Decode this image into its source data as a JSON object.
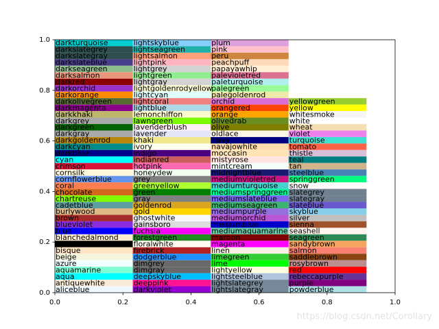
{
  "chart_data": {
    "type": "swatch",
    "columns": [
      {
        "names": [
          "darkturquoise",
          "darkslategrey",
          "darkslategray",
          "darkslateblue",
          "darkseagreen",
          "darksalmon",
          "darkred",
          "darkorchid",
          "darkorange",
          "darkolivegreen",
          "darkmagenta",
          "darkkhaki",
          "darkgrey",
          "darkgreen",
          "darkgray",
          "darkgoldenrod",
          "darkcyan",
          "darkblue",
          "cyan",
          "crimson",
          "cornsilk",
          "cornflowerblue",
          "coral",
          "chocolate",
          "chartreuse",
          "cadetblue",
          "burlywood",
          "brown",
          "blueviolet",
          "blue",
          "blanchedalmond",
          "black",
          "bisque",
          "beige",
          "azure",
          "aquamarine",
          "aqua",
          "antiquewhite",
          "aliceblue"
        ]
      },
      {
        "names": [
          "lightskyblue",
          "lightseagreen",
          "lightsalmon",
          "lightpink",
          "lightgrey",
          "lightgreen",
          "lightgray",
          "lightgoldenrodyellow",
          "lightcyan",
          "lightcoral",
          "lightblue",
          "lemonchiffon",
          "lawngreen",
          "lavenderblush",
          "lavender",
          "khaki",
          "ivory",
          "indigo",
          "indianred",
          "hotpink",
          "honeydew",
          "grey",
          "greenyellow",
          "green",
          "gray",
          "goldenrod",
          "gold",
          "ghostwhite",
          "gainsboro",
          "fuchsia",
          "forestgreen",
          "floralwhite",
          "firebrick",
          "dodgerblue",
          "dimgrey",
          "dimgray",
          "deepskyblue",
          "deeppink",
          "darkviolet"
        ]
      },
      {
        "names": [
          "plum",
          "pink",
          "peru",
          "peachpuff",
          "papayawhip",
          "palevioletred",
          "paleturquoise",
          "palegreen",
          "palegoldenrod",
          "orchid",
          "orangered",
          "orange",
          "olivedrab",
          "olive",
          "oldlace",
          "navy",
          "navajowhite",
          "moccasin",
          "mistyrose",
          "mintcream",
          "midnightblue",
          "mediumvioletred",
          "mediumturquoise",
          "mediumspringgreen",
          "mediumslateblue",
          "mediumseagreen",
          "mediumpurple",
          "mediumorchid",
          "mediumblue",
          "mediumaquamarine",
          "maroon",
          "magenta",
          "linen",
          "limegreen",
          "lime",
          "lightyellow",
          "lightsteelblue",
          "lightslategrey",
          "lightslategray"
        ]
      },
      {
        "names": [
          "yellowgreen",
          "yellow",
          "whitesmoke",
          "white",
          "wheat",
          "violet",
          "turquoise",
          "tomato",
          "thistle",
          "teal",
          "tan",
          "steelblue",
          "springgreen",
          "snow",
          "slategrey",
          "slategray",
          "slateblue",
          "skyblue",
          "silver",
          "sienna",
          "seashell",
          "seagreen",
          "sandybrown",
          "salmon",
          "saddlebrown",
          "rosybrown",
          "red",
          "rebeccapurple",
          "purple",
          "powderblue"
        ]
      }
    ],
    "xlim": [
      0,
      1
    ],
    "ylim": [
      0,
      1
    ],
    "xticks": [
      {
        "value": 0,
        "label": "0.0"
      },
      {
        "value": 0.2,
        "label": "0.2"
      },
      {
        "value": 0.4,
        "label": "0.4"
      },
      {
        "value": 0.6,
        "label": "0.6"
      },
      {
        "value": 0.8,
        "label": "0.8"
      },
      {
        "value": 1,
        "label": "1.0"
      }
    ],
    "yticks": [
      {
        "value": 0,
        "label": "0.0"
      },
      {
        "value": 0.2,
        "label": "0.2"
      },
      {
        "value": 0.4,
        "label": "0.4"
      },
      {
        "value": 0.6,
        "label": "0.6"
      },
      {
        "value": 0.8,
        "label": "0.8"
      },
      {
        "value": 1,
        "label": "1.0"
      }
    ],
    "watermark": "https://blog.csdn.net/Corollary"
  }
}
